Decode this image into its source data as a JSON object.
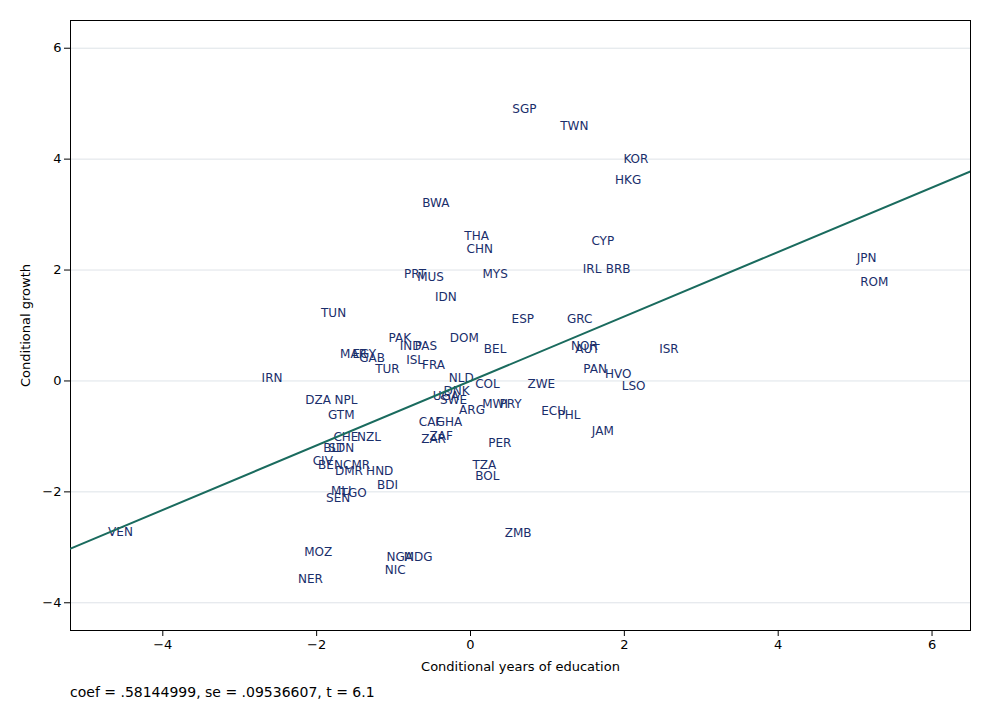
{
  "chart_data": {
    "type": "scatter",
    "xlabel": "Conditional years of education",
    "ylabel": "Conditional growth",
    "annotation": "coef = .58144999, se = .09536607, t = 6.1",
    "labels": [
      "SGP",
      "TWN",
      "KOR",
      "HKG",
      "BWA",
      "THA",
      "CHN",
      "CYP",
      "JPN",
      "IRL",
      "BRB",
      "ROM",
      "MYS",
      "PRT",
      "MUS",
      "TUN",
      "IDN",
      "ESP",
      "GRC",
      "PAK",
      "DOM",
      "IND",
      "PAS",
      "BEL",
      "NOR",
      "AUT",
      "MAR",
      "EGY",
      "GAB",
      "ISR",
      "ISL",
      "FRA",
      "TUR",
      "PAN",
      "HVO",
      "IRN",
      "NLD",
      "COL",
      "ZWE",
      "LSO",
      "NPL",
      "DZA",
      "UGA",
      "DNK",
      "SWE",
      "ARG",
      "MWI",
      "PRY",
      "ECU",
      "PHL",
      "GTM",
      "CAF",
      "GHA",
      "JAM",
      "CHE",
      "NZL",
      "ZAR",
      "ZAF",
      "PER",
      "BLT",
      "SDN",
      "CIV",
      "BEN",
      "CMR",
      "DMR",
      "HND",
      "TZA",
      "BOL",
      "BDI",
      "MLI",
      "TGO",
      "SEN",
      "ZMB",
      "VEN",
      "MOZ",
      "NGA",
      "MDG",
      "NIC",
      "NER"
    ],
    "x": [
      0.7,
      1.35,
      2.15,
      2.05,
      -0.45,
      0.08,
      0.12,
      1.72,
      5.15,
      1.58,
      1.92,
      5.25,
      0.32,
      -0.72,
      -0.52,
      -1.78,
      -0.32,
      0.68,
      1.42,
      -0.92,
      -0.08,
      -0.78,
      -0.58,
      0.32,
      1.48,
      1.52,
      -1.52,
      -1.38,
      -1.28,
      2.58,
      -0.72,
      -0.48,
      -1.08,
      1.62,
      1.92,
      -2.58,
      -0.12,
      0.22,
      0.92,
      2.12,
      -1.62,
      -1.98,
      -0.32,
      -0.18,
      -0.22,
      0.02,
      0.32,
      0.52,
      1.08,
      1.28,
      -1.68,
      -0.52,
      -0.28,
      1.72,
      -1.62,
      -1.32,
      -0.48,
      -0.38,
      0.38,
      -1.78,
      -1.68,
      -1.92,
      -1.82,
      -1.48,
      -1.58,
      -1.18,
      0.18,
      0.22,
      -1.08,
      -1.68,
      -1.52,
      -1.72,
      0.62,
      -4.55,
      -1.98,
      -0.92,
      -0.68,
      -0.98,
      -2.08
    ],
    "values": [
      4.9,
      4.6,
      4.0,
      3.62,
      3.2,
      2.62,
      2.38,
      2.52,
      2.22,
      2.02,
      2.02,
      1.78,
      1.92,
      1.92,
      1.87,
      1.22,
      1.52,
      1.12,
      1.12,
      0.78,
      0.78,
      0.62,
      0.62,
      0.58,
      0.62,
      0.57,
      0.48,
      0.48,
      0.42,
      0.58,
      0.38,
      0.28,
      0.22,
      0.22,
      0.12,
      0.05,
      0.05,
      -0.05,
      -0.05,
      -0.1,
      -0.35,
      -0.35,
      -0.28,
      -0.18,
      -0.35,
      -0.52,
      -0.42,
      -0.42,
      -0.55,
      -0.62,
      -0.62,
      -0.75,
      -0.75,
      -0.9,
      -1.02,
      -1.02,
      -1.05,
      -1.0,
      -1.12,
      -1.22,
      -1.22,
      -1.45,
      -1.52,
      -1.52,
      -1.62,
      -1.62,
      -1.52,
      -1.72,
      -1.88,
      -1.98,
      -2.02,
      -2.12,
      -2.75,
      -2.72,
      -3.08,
      -3.18,
      -3.18,
      -3.42,
      -3.58
    ],
    "color": "#1a2e6b",
    "fit": {
      "slope": 0.58144999,
      "intercept": 0.0,
      "color": "#1a6b5e"
    },
    "xlim": [
      -5.2,
      6.5
    ],
    "ylim": [
      -4.5,
      6.5
    ],
    "xticks": [
      -4,
      -2,
      0,
      2,
      4,
      6
    ],
    "yticks": [
      -4,
      -2,
      0,
      2,
      4,
      6
    ],
    "grid": "y"
  }
}
